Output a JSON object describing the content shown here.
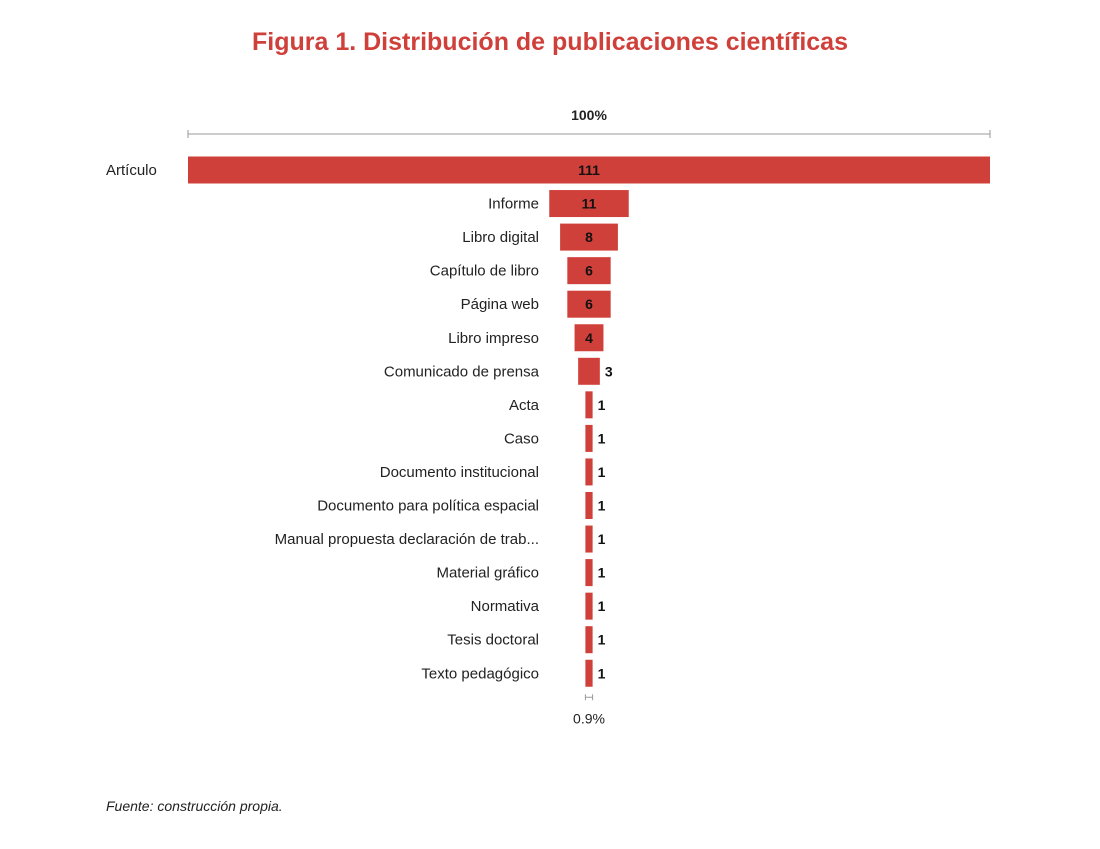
{
  "title": "Figura 1. Distribución de publicaciones científicas",
  "source": "Fuente: construcción propia.",
  "colors": {
    "bar": "#d0403a",
    "title": "#d0403a",
    "text": "#222222",
    "range": "#999999"
  },
  "chart_data": {
    "type": "bar",
    "orientation": "horizontal",
    "layout": "funnel",
    "title": "Figura 1. Distribución de publicaciones científicas",
    "categories": [
      "Artículo",
      "Informe",
      "Libro digital",
      "Capítulo de libro",
      "Página web",
      "Libro impreso",
      "Comunicado de prensa",
      "Acta",
      "Caso",
      "Documento institucional",
      "Documento para política espacial",
      "Manual propuesta declaración de trab...",
      "Material gráfico",
      "Normativa",
      "Tesis doctoral",
      "Texto pedagógico"
    ],
    "values": [
      111,
      11,
      8,
      6,
      6,
      4,
      3,
      1,
      1,
      1,
      1,
      1,
      1,
      1,
      1,
      1
    ],
    "top_percent_label": "100%",
    "bottom_percent_label": "0.9%",
    "xlim": [
      0,
      111
    ]
  }
}
